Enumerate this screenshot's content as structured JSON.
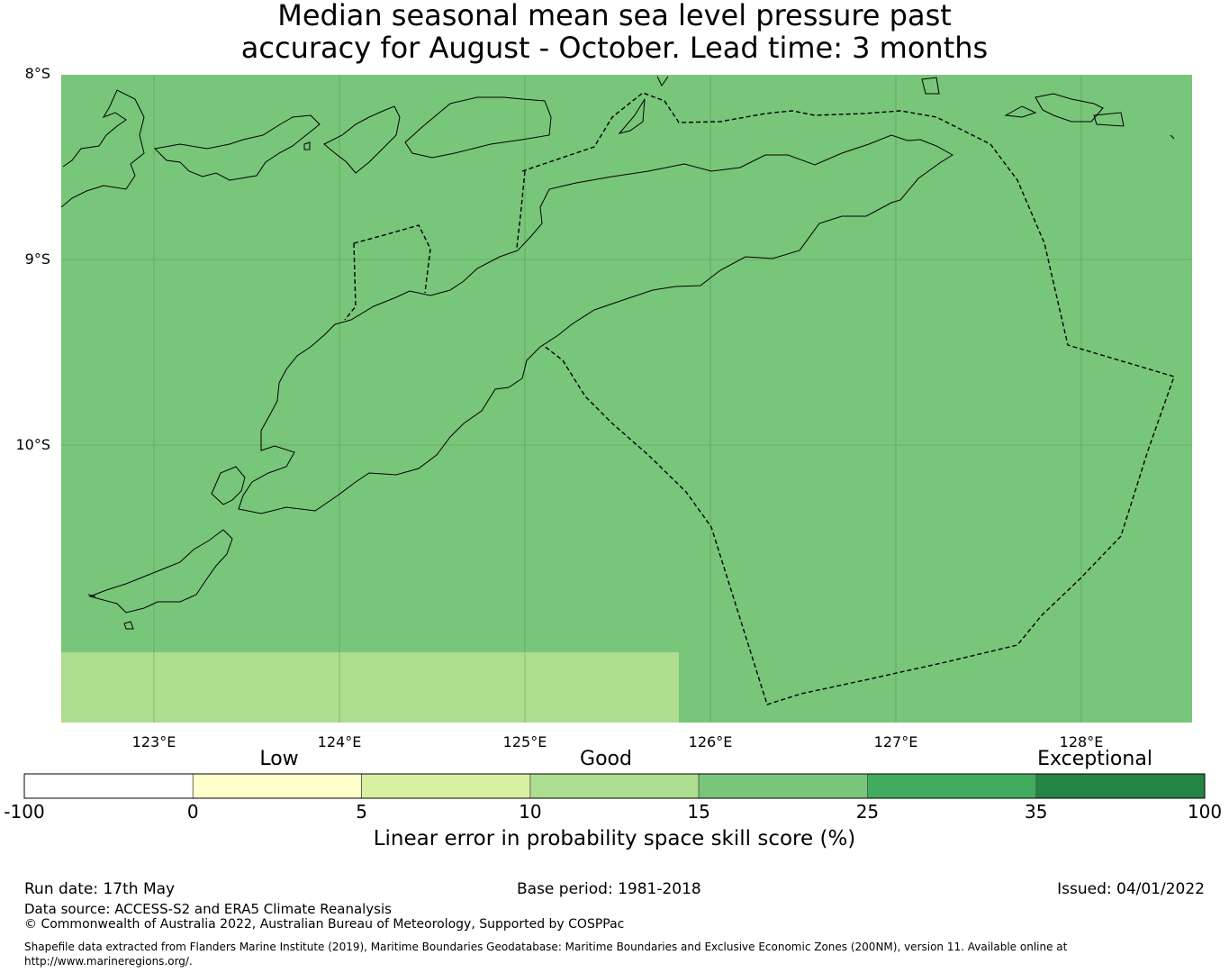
{
  "title": {
    "line1": "Median seasonal mean sea level pressure past",
    "line2": "accuracy for August - October. Lead time: 3 months"
  },
  "map": {
    "latitude_labels": [
      "8°S",
      "9°S",
      "10°S"
    ],
    "longitude_labels": [
      "123°E",
      "124°E",
      "125°E",
      "126°E",
      "127°E",
      "128°E"
    ],
    "colors": {
      "main_fill": "#78c679",
      "lower_left_fill": "#addd8e",
      "coastline": "#000000",
      "boundary": "#000000",
      "grid": "#4a8a4a"
    }
  },
  "colorbar": {
    "category_labels": [
      "Low",
      "Good",
      "Exceptional"
    ],
    "ticks": [
      "-100",
      "0",
      "5",
      "10",
      "15",
      "25",
      "35",
      "100"
    ],
    "bins": [
      {
        "from": -100,
        "to": 0,
        "color": "#ffffff"
      },
      {
        "from": 0,
        "to": 5,
        "color": "#ffffcc"
      },
      {
        "from": 5,
        "to": 10,
        "color": "#d9f0a3"
      },
      {
        "from": 10,
        "to": 15,
        "color": "#addd8e"
      },
      {
        "from": 15,
        "to": 25,
        "color": "#78c679"
      },
      {
        "from": 25,
        "to": 35,
        "color": "#41ab5d"
      },
      {
        "from": 35,
        "to": 100,
        "color": "#238443"
      }
    ],
    "title": "Linear error in probability space skill score (%)"
  },
  "footer": {
    "run_date": "Run date: 17th May",
    "base_period": "Base period: 1981-2018",
    "issued": "Issued: 04/01/2022",
    "data_source": "Data source: ACCESS-S2 and ERA5 Climate Reanalysis",
    "copyright": "© Commonwealth of Australia 2022, Australian Bureau of Meteorology, Supported by COSPPac",
    "shapefile_line1": "Shapefile data extracted from Flanders Marine Institute (2019), Maritime Boundaries Geodatabase: Maritime Boundaries and Exclusive Economic Zones (200NM), version 11. Available online at",
    "shapefile_line2": "http://www.marineregions.org/."
  }
}
